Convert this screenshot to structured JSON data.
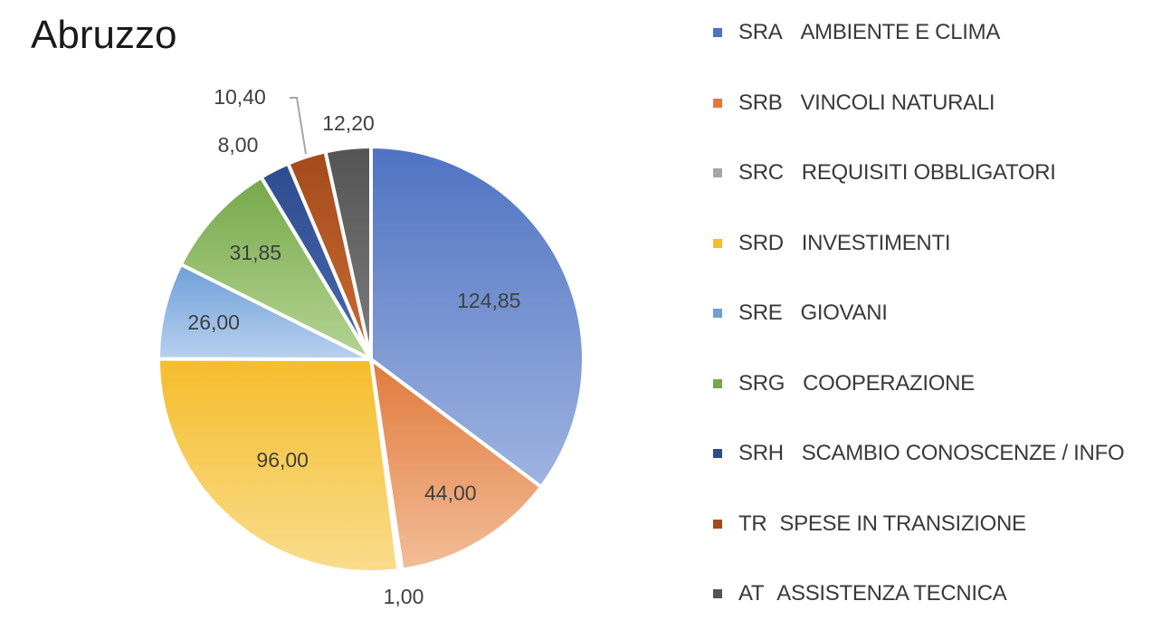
{
  "chart_data": {
    "type": "pie",
    "title": "Abruzzo",
    "slices": [
      {
        "code": "SRA",
        "name": "AMBIENTE E CLIMA",
        "value": 124.85,
        "label": "124,85",
        "color": "#4f73c2",
        "color_light": "#9fb3e0"
      },
      {
        "code": "SRB",
        "name": "VINCOLI NATURALI",
        "value": 44.0,
        "label": "44,00",
        "color": "#e07a3c",
        "color_light": "#f3bd98"
      },
      {
        "code": "SRC",
        "name": "REQUISITI OBBLIGATORI",
        "value": 1.0,
        "label": "1,00",
        "color": "#a5a5a5",
        "color_light": "#cfcfcf"
      },
      {
        "code": "SRD",
        "name": "INVESTIMENTI",
        "value": 96.0,
        "label": "96,00",
        "color": "#f5bd2c",
        "color_light": "#f9dc8c"
      },
      {
        "code": "SRE",
        "name": "GIOVANI",
        "value": 26.0,
        "label": "26,00",
        "color": "#6d9fd8",
        "color_light": "#b9d0ee"
      },
      {
        "code": "SRG",
        "name": "COOPERAZIONE",
        "value": 31.85,
        "label": "31,85",
        "color": "#76a84a",
        "color_light": "#b5d494"
      },
      {
        "code": "SRH",
        "name": "SCAMBIO CONOSCENZE / INFO",
        "value": 8.0,
        "label": "8,00",
        "color": "#2e4c8e",
        "color_light": "#4a68ae"
      },
      {
        "code": "TR",
        "name": "SPESE IN TRANSIZIONE",
        "value": 10.4,
        "label": "10,40",
        "color": "#a54b1b",
        "color_light": "#c86a34"
      },
      {
        "code": "AT",
        "name": "ASSISTENZA TECNICA",
        "value": 12.2,
        "label": "12,20",
        "color": "#545454",
        "color_light": "#7d7d7d"
      }
    ],
    "legend": {
      "position": "right"
    },
    "label_color": "#404040"
  }
}
